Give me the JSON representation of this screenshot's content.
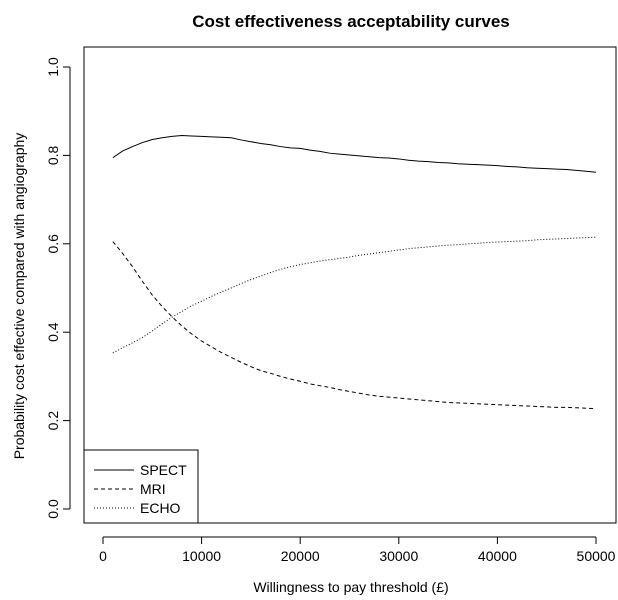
{
  "chart_data": {
    "type": "line",
    "title": "Cost effectiveness acceptability curves",
    "xlabel": "Willingness to pay threshold (£)",
    "ylabel": "Probability cost effective compared with angiography",
    "xlim": [
      0,
      50000
    ],
    "ylim": [
      0,
      1
    ],
    "xticks": [
      0,
      10000,
      20000,
      30000,
      40000,
      50000
    ],
    "xtick_labels": [
      "0",
      "10000",
      "20000",
      "30000",
      "40000",
      "50000"
    ],
    "yticks": [
      0,
      0.2,
      0.4,
      0.6,
      0.8,
      1
    ],
    "ytick_labels": [
      "0.0",
      "0.2",
      "0.4",
      "0.6",
      "0.8",
      "1.0"
    ],
    "grid": false,
    "legend_position": "bottom-left",
    "x": [
      1000,
      2000,
      3000,
      4000,
      5000,
      6000,
      7000,
      8000,
      9000,
      10000,
      11000,
      12000,
      13000,
      14000,
      15000,
      16000,
      17000,
      18000,
      19000,
      20000,
      21000,
      22000,
      23000,
      24000,
      25000,
      26000,
      27000,
      28000,
      29000,
      30000,
      31000,
      32000,
      33000,
      34000,
      35000,
      36000,
      37000,
      38000,
      39000,
      40000,
      41000,
      42000,
      43000,
      44000,
      45000,
      46000,
      47000,
      48000,
      49000,
      50000
    ],
    "series": [
      {
        "name": "SPECT",
        "dash": "solid",
        "values": [
          0.795,
          0.81,
          0.82,
          0.829,
          0.836,
          0.84,
          0.843,
          0.845,
          0.844,
          0.843,
          0.842,
          0.841,
          0.84,
          0.835,
          0.831,
          0.827,
          0.824,
          0.82,
          0.817,
          0.816,
          0.812,
          0.809,
          0.805,
          0.803,
          0.801,
          0.799,
          0.797,
          0.795,
          0.794,
          0.792,
          0.789,
          0.787,
          0.786,
          0.784,
          0.783,
          0.781,
          0.78,
          0.779,
          0.778,
          0.777,
          0.775,
          0.774,
          0.772,
          0.771,
          0.77,
          0.769,
          0.768,
          0.766,
          0.764,
          0.762
        ]
      },
      {
        "name": "MRI",
        "dash": "dashed",
        "values": [
          0.605,
          0.578,
          0.548,
          0.515,
          0.484,
          0.458,
          0.435,
          0.414,
          0.396,
          0.38,
          0.367,
          0.354,
          0.343,
          0.332,
          0.322,
          0.313,
          0.307,
          0.3,
          0.294,
          0.289,
          0.283,
          0.279,
          0.275,
          0.27,
          0.266,
          0.262,
          0.258,
          0.255,
          0.253,
          0.251,
          0.249,
          0.247,
          0.245,
          0.243,
          0.241,
          0.24,
          0.239,
          0.238,
          0.237,
          0.236,
          0.235,
          0.234,
          0.233,
          0.232,
          0.231,
          0.23,
          0.23,
          0.229,
          0.228,
          0.227
        ]
      },
      {
        "name": "ECHO",
        "dash": "dotted",
        "values": [
          0.353,
          0.365,
          0.376,
          0.388,
          0.403,
          0.419,
          0.434,
          0.447,
          0.46,
          0.47,
          0.481,
          0.491,
          0.5,
          0.51,
          0.519,
          0.527,
          0.535,
          0.542,
          0.548,
          0.553,
          0.557,
          0.561,
          0.564,
          0.567,
          0.57,
          0.574,
          0.577,
          0.58,
          0.583,
          0.586,
          0.589,
          0.591,
          0.593,
          0.595,
          0.597,
          0.598,
          0.6,
          0.601,
          0.603,
          0.604,
          0.605,
          0.606,
          0.607,
          0.609,
          0.61,
          0.611,
          0.612,
          0.613,
          0.614,
          0.615
        ]
      }
    ]
  }
}
